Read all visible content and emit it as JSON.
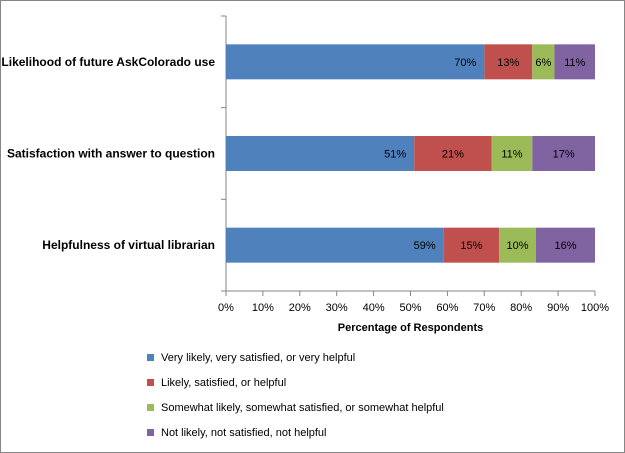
{
  "chart_data": {
    "type": "bar",
    "orientation": "horizontal",
    "stacked": true,
    "categories": [
      "Likelihood of future AskColorado use",
      "Satisfaction with answer to question",
      "Helpfulness of virtual librarian"
    ],
    "series": [
      {
        "name": "Very likely, very satisfied, or very helpful",
        "color": "#4F81BD",
        "values": [
          70,
          51,
          59
        ],
        "labels": [
          "70%",
          "51%",
          "59%"
        ]
      },
      {
        "name": "Likely, satisfied, or helpful",
        "color": "#C0504D",
        "values": [
          13,
          21,
          15
        ],
        "labels": [
          "13%",
          "21%",
          "15%"
        ]
      },
      {
        "name": "Somewhat likely, somewhat satisfied, or somewhat helpful",
        "color": "#9BBB59",
        "values": [
          6,
          11,
          10
        ],
        "labels": [
          "6%",
          "11%",
          "10%"
        ]
      },
      {
        "name": "Not likely, not satisfied, not helpful",
        "color": "#8064A2",
        "values": [
          11,
          17,
          16
        ],
        "labels": [
          "11%",
          "17%",
          "16%"
        ]
      }
    ],
    "xlabel": "Percentage of Respondents",
    "ylabel": "",
    "xlim": [
      0,
      100
    ],
    "xticks": [
      "0%",
      "10%",
      "20%",
      "30%",
      "40%",
      "50%",
      "60%",
      "70%",
      "80%",
      "90%",
      "100%"
    ],
    "grid": false,
    "legend_position": "bottom"
  }
}
